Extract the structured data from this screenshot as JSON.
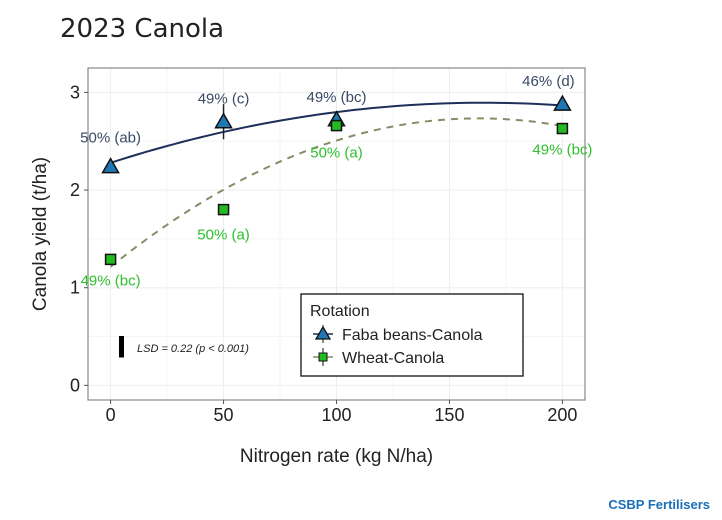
{
  "title": "2023 Canola",
  "brand": "CSBP Fertilisers",
  "chart_data": {
    "type": "scatter",
    "title": "2023 Canola",
    "xlabel": "Nitrogen rate (kg N/ha)",
    "ylabel": "Canola yield (t/ha)",
    "xlim": [
      -10,
      210
    ],
    "ylim": [
      -0.15,
      3.25
    ],
    "xticks": [
      0,
      50,
      100,
      150,
      200
    ],
    "yticks": [
      0,
      1,
      2,
      3
    ],
    "grid": true,
    "legend": {
      "title": "Rotation",
      "placement": "bottom-center"
    },
    "series": [
      {
        "name": "Faba beans-Canola",
        "marker": "triangle",
        "color": "#1f77b4",
        "line_color": "#1f2f5a",
        "line_style": "solid",
        "x": [
          0,
          50,
          100,
          200
        ],
        "y": [
          2.24,
          2.7,
          2.72,
          2.88
        ],
        "labels": [
          "50% (ab)",
          "49% (c)",
          "49% (bc)",
          "46% (d)"
        ],
        "label_color": "#3a4a66"
      },
      {
        "name": "Wheat-Canola",
        "marker": "square",
        "color": "#22bb22",
        "line_color": "#8a8a6a",
        "line_style": "dashed",
        "x": [
          0,
          50,
          100,
          200
        ],
        "y": [
          1.29,
          1.8,
          2.66,
          2.63
        ],
        "labels": [
          "49% (bc)",
          "50% (a)",
          "50% (a)",
          "49% (bc)"
        ],
        "label_color": "#2ec02e"
      }
    ],
    "annotation": "LSD = 0.22 (p < 0.001)",
    "lsd": 0.22
  }
}
